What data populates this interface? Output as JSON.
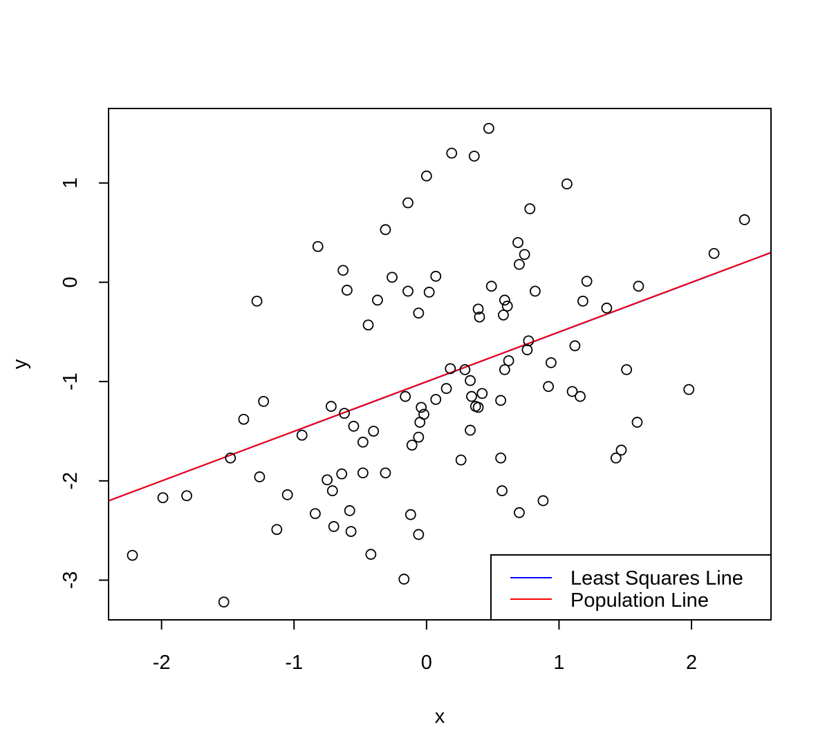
{
  "chart_data": {
    "type": "scatter",
    "title": "",
    "xlabel": "x",
    "ylabel": "y",
    "xlim": [
      -2.4,
      2.6
    ],
    "ylim": [
      -3.4,
      1.75
    ],
    "xticks": [
      -2,
      -1,
      0,
      1,
      2
    ],
    "yticks": [
      -3,
      -2,
      -1,
      0,
      1
    ],
    "grid": false,
    "legend_position": "bottom-right",
    "points": [
      [
        -2.22,
        -2.75
      ],
      [
        -1.99,
        -2.17
      ],
      [
        -1.81,
        -2.15
      ],
      [
        -1.53,
        -3.22
      ],
      [
        -1.48,
        -1.77
      ],
      [
        -1.38,
        -1.38
      ],
      [
        -1.28,
        -0.19
      ],
      [
        -1.26,
        -1.96
      ],
      [
        -1.23,
        -1.2
      ],
      [
        -1.13,
        -2.49
      ],
      [
        -1.05,
        -2.14
      ],
      [
        -0.94,
        -1.54
      ],
      [
        -0.84,
        -2.33
      ],
      [
        -0.82,
        0.36
      ],
      [
        -0.75,
        -1.99
      ],
      [
        -0.72,
        -1.25
      ],
      [
        -0.71,
        -2.1
      ],
      [
        -0.7,
        -2.46
      ],
      [
        -0.64,
        -1.93
      ],
      [
        -0.63,
        0.12
      ],
      [
        -0.62,
        -1.32
      ],
      [
        -0.6,
        -0.08
      ],
      [
        -0.58,
        -2.3
      ],
      [
        -0.57,
        -2.51
      ],
      [
        -0.55,
        -1.45
      ],
      [
        -0.48,
        -1.61
      ],
      [
        -0.48,
        -1.92
      ],
      [
        -0.44,
        -0.43
      ],
      [
        -0.42,
        -2.74
      ],
      [
        -0.4,
        -1.5
      ],
      [
        -0.37,
        -0.18
      ],
      [
        -0.31,
        0.53
      ],
      [
        -0.31,
        -1.92
      ],
      [
        -0.26,
        0.05
      ],
      [
        -0.17,
        -2.99
      ],
      [
        -0.16,
        -1.15
      ],
      [
        -0.14,
        0.8
      ],
      [
        -0.14,
        -0.09
      ],
      [
        -0.12,
        -2.34
      ],
      [
        -0.11,
        -1.64
      ],
      [
        -0.06,
        -1.56
      ],
      [
        -0.06,
        -2.54
      ],
      [
        -0.06,
        -0.31
      ],
      [
        -0.05,
        -1.41
      ],
      [
        -0.04,
        -1.26
      ],
      [
        -0.02,
        -1.33
      ],
      [
        0.0,
        1.07
      ],
      [
        0.02,
        -0.1
      ],
      [
        0.07,
        0.06
      ],
      [
        0.07,
        -1.18
      ],
      [
        0.15,
        -1.07
      ],
      [
        0.18,
        -0.87
      ],
      [
        0.19,
        1.3
      ],
      [
        0.26,
        -1.79
      ],
      [
        0.29,
        -0.88
      ],
      [
        0.33,
        -0.99
      ],
      [
        0.33,
        -1.49
      ],
      [
        0.34,
        -1.15
      ],
      [
        0.36,
        1.27
      ],
      [
        0.37,
        -1.25
      ],
      [
        0.39,
        -0.27
      ],
      [
        0.39,
        -1.26
      ],
      [
        0.4,
        -0.35
      ],
      [
        0.42,
        -1.12
      ],
      [
        0.47,
        1.55
      ],
      [
        0.49,
        -0.04
      ],
      [
        0.56,
        -1.19
      ],
      [
        0.56,
        -1.77
      ],
      [
        0.57,
        -2.1
      ],
      [
        0.58,
        -0.33
      ],
      [
        0.59,
        -0.18
      ],
      [
        0.59,
        -0.88
      ],
      [
        0.61,
        -0.24
      ],
      [
        0.62,
        -0.79
      ],
      [
        0.69,
        0.4
      ],
      [
        0.7,
        0.18
      ],
      [
        0.7,
        -2.32
      ],
      [
        0.74,
        0.28
      ],
      [
        0.76,
        -0.68
      ],
      [
        0.77,
        -0.59
      ],
      [
        0.78,
        0.74
      ],
      [
        0.82,
        -0.09
      ],
      [
        0.88,
        -2.2
      ],
      [
        0.92,
        -1.05
      ],
      [
        0.94,
        -0.81
      ],
      [
        1.06,
        0.99
      ],
      [
        1.1,
        -1.1
      ],
      [
        1.12,
        -0.64
      ],
      [
        1.16,
        -1.15
      ],
      [
        1.18,
        -0.19
      ],
      [
        1.21,
        0.01
      ],
      [
        1.36,
        -0.26
      ],
      [
        1.43,
        -1.77
      ],
      [
        1.47,
        -1.69
      ],
      [
        1.51,
        -0.88
      ],
      [
        1.59,
        -1.41
      ],
      [
        1.6,
        -0.04
      ],
      [
        1.98,
        -1.08
      ],
      [
        2.17,
        0.29
      ],
      [
        2.4,
        0.63
      ]
    ],
    "series": [
      {
        "name": "Least Squares Line",
        "color": "#0000ff",
        "intercept": -1.002,
        "slope": 0.5
      },
      {
        "name": "Population Line",
        "color": "#ff0000",
        "intercept": -1.0,
        "slope": 0.5
      }
    ]
  }
}
